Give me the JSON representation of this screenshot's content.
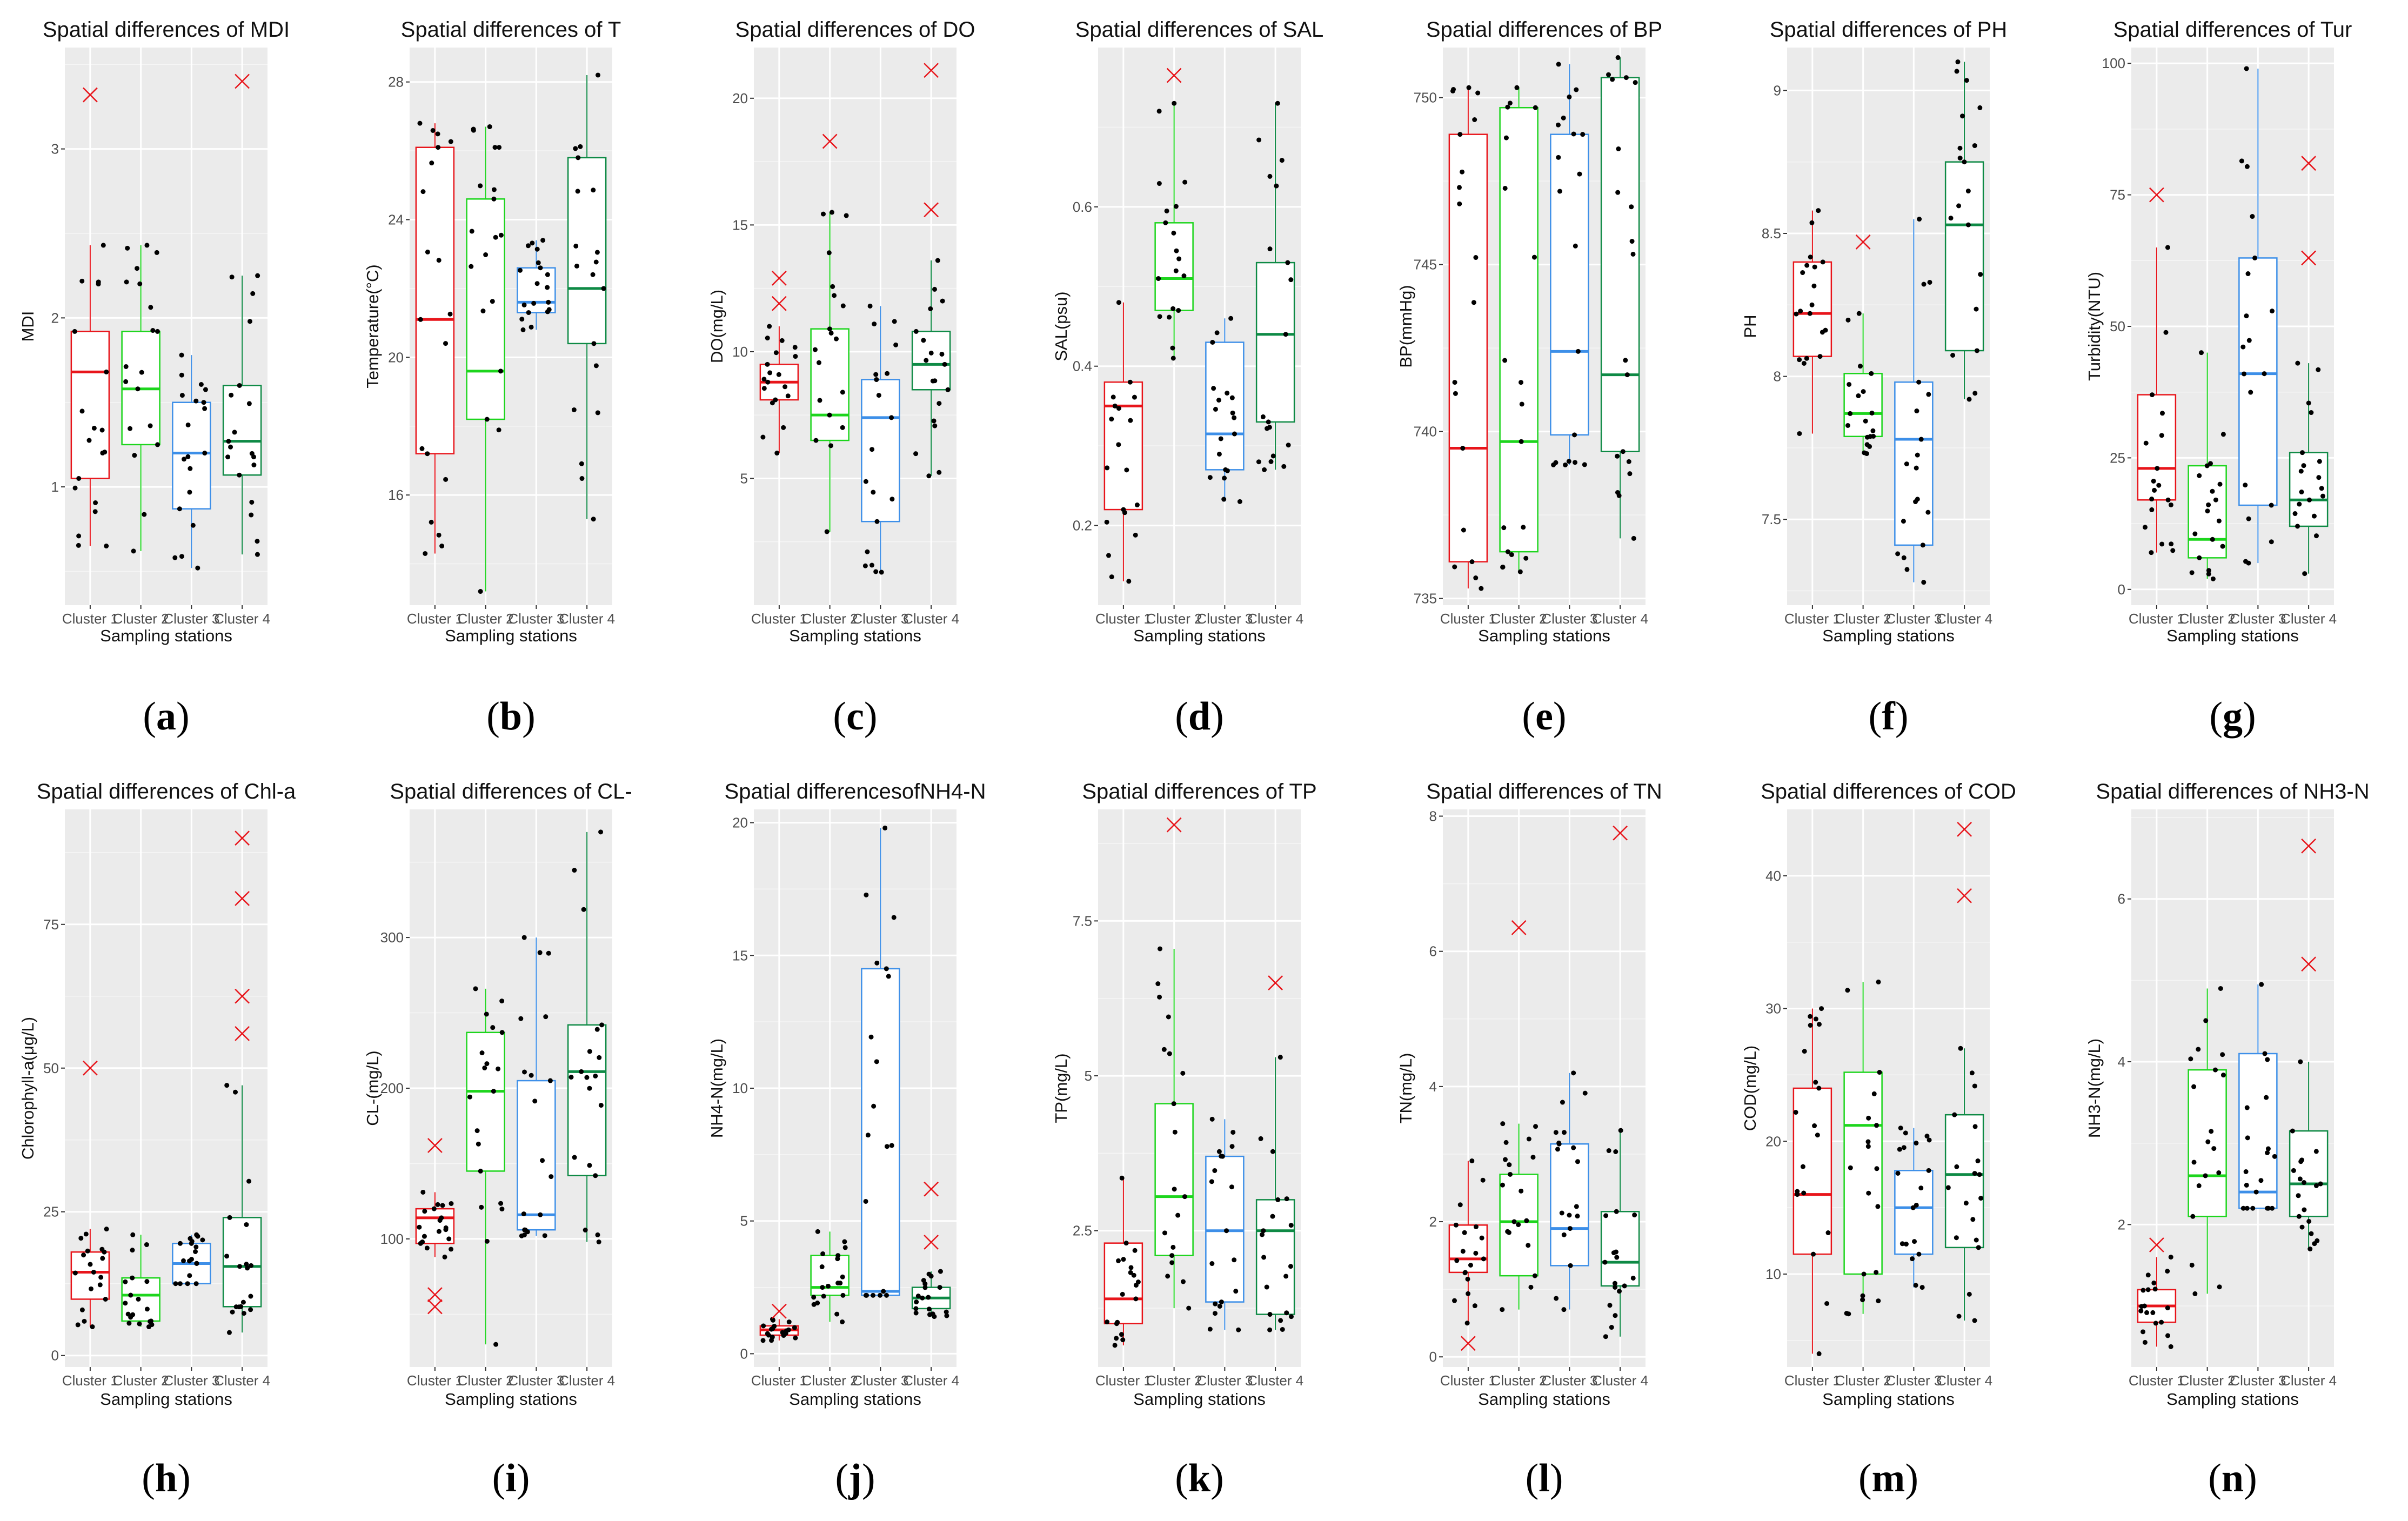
{
  "xlabel": "Sampling stations",
  "categories": [
    "Cluster 1",
    "Cluster 2",
    "Cluster 3",
    "Cluster 4"
  ],
  "colors": [
    "#e8151b",
    "#1dd51d",
    "#3d8fe8",
    "#0e8a45"
  ],
  "outlier_color": "#e8151b",
  "chart_data": [
    {
      "type": "box",
      "label": "a",
      "title": "Spatial differences of MDI",
      "ylabel": "MDI",
      "ylim": [
        0.3,
        3.6
      ],
      "yticks": [
        1,
        2,
        3
      ],
      "boxes": [
        {
          "q1": 1.05,
          "median": 1.68,
          "q3": 1.92,
          "wlo": 0.65,
          "whi": 2.43,
          "outliers": [
            3.32
          ]
        },
        {
          "q1": 1.25,
          "median": 1.58,
          "q3": 1.92,
          "wlo": 0.62,
          "whi": 2.43,
          "outliers": []
        },
        {
          "q1": 0.87,
          "median": 1.2,
          "q3": 1.5,
          "wlo": 0.52,
          "whi": 1.78,
          "outliers": []
        },
        {
          "q1": 1.07,
          "median": 1.27,
          "q3": 1.6,
          "wlo": 0.6,
          "whi": 2.25,
          "outliers": [
            3.4
          ]
        }
      ]
    },
    {
      "type": "box",
      "label": "b",
      "title": "Spatial differences of T",
      "ylabel": "Temperature(°C)",
      "ylim": [
        12.8,
        29
      ],
      "yticks": [
        16,
        20,
        24,
        28
      ],
      "boxes": [
        {
          "q1": 17.2,
          "median": 21.1,
          "q3": 26.1,
          "wlo": 14.3,
          "whi": 26.8,
          "outliers": []
        },
        {
          "q1": 18.2,
          "median": 19.6,
          "q3": 24.6,
          "wlo": 13.2,
          "whi": 26.7,
          "outliers": []
        },
        {
          "q1": 21.3,
          "median": 21.6,
          "q3": 22.6,
          "wlo": 20.8,
          "whi": 23.4,
          "outliers": []
        },
        {
          "q1": 20.4,
          "median": 22.0,
          "q3": 25.8,
          "wlo": 15.3,
          "whi": 28.2,
          "outliers": []
        }
      ]
    },
    {
      "type": "box",
      "label": "c",
      "title": "Spatial differences of DO",
      "ylabel": "DO(mg/L)",
      "ylim": [
        0,
        22
      ],
      "yticks": [
        5,
        10,
        15,
        20
      ],
      "boxes": [
        {
          "q1": 8.1,
          "median": 8.8,
          "q3": 9.5,
          "wlo": 6.0,
          "whi": 11.0,
          "outliers": [
            12.9,
            11.9
          ]
        },
        {
          "q1": 6.5,
          "median": 7.5,
          "q3": 10.9,
          "wlo": 2.9,
          "whi": 15.5,
          "outliers": [
            18.3
          ]
        },
        {
          "q1": 3.3,
          "median": 7.4,
          "q3": 8.9,
          "wlo": 1.3,
          "whi": 11.8,
          "outliers": []
        },
        {
          "q1": 8.5,
          "median": 9.5,
          "q3": 10.8,
          "wlo": 5.1,
          "whi": 13.6,
          "outliers": [
            21.1,
            15.6
          ]
        }
      ]
    },
    {
      "type": "box",
      "label": "d",
      "title": "Spatial differences of SAL",
      "ylabel": "SAL(psu)",
      "ylim": [
        0.1,
        0.8
      ],
      "yticks": [
        0.2,
        0.4,
        0.6
      ],
      "boxes": [
        {
          "q1": 0.22,
          "median": 0.35,
          "q3": 0.38,
          "wlo": 0.13,
          "whi": 0.48,
          "outliers": []
        },
        {
          "q1": 0.47,
          "median": 0.51,
          "q3": 0.58,
          "wlo": 0.41,
          "whi": 0.73,
          "outliers": [
            0.765
          ]
        },
        {
          "q1": 0.27,
          "median": 0.315,
          "q3": 0.43,
          "wlo": 0.23,
          "whi": 0.46,
          "outliers": []
        },
        {
          "q1": 0.33,
          "median": 0.44,
          "q3": 0.53,
          "wlo": 0.27,
          "whi": 0.73,
          "outliers": []
        }
      ]
    },
    {
      "type": "box",
      "label": "e",
      "title": "Spatial differences of BP",
      "ylabel": "BP(mmHg)",
      "ylim": [
        734.8,
        751.5
      ],
      "yticks": [
        735,
        740,
        745,
        750
      ],
      "boxes": [
        {
          "q1": 736.1,
          "median": 739.5,
          "q3": 748.9,
          "wlo": 735.3,
          "whi": 750.3,
          "outliers": []
        },
        {
          "q1": 736.4,
          "median": 739.7,
          "q3": 749.7,
          "wlo": 735.8,
          "whi": 750.3,
          "outliers": []
        },
        {
          "q1": 739.9,
          "median": 742.4,
          "q3": 748.9,
          "wlo": 739.0,
          "whi": 751.0,
          "outliers": []
        },
        {
          "q1": 739.4,
          "median": 741.7,
          "q3": 750.6,
          "wlo": 736.8,
          "whi": 751.2,
          "outliers": []
        }
      ]
    },
    {
      "type": "box",
      "label": "f",
      "title": "Spatial differences of PH",
      "ylabel": "PH",
      "ylim": [
        7.2,
        9.15
      ],
      "yticks": [
        7.5,
        8.0,
        8.5,
        9.0
      ],
      "boxes": [
        {
          "q1": 8.07,
          "median": 8.22,
          "q3": 8.4,
          "wlo": 7.8,
          "whi": 8.58,
          "outliers": []
        },
        {
          "q1": 7.79,
          "median": 7.87,
          "q3": 8.01,
          "wlo": 7.73,
          "whi": 8.22,
          "outliers": [
            8.47
          ]
        },
        {
          "q1": 7.41,
          "median": 7.78,
          "q3": 7.98,
          "wlo": 7.28,
          "whi": 8.55,
          "outliers": []
        },
        {
          "q1": 8.09,
          "median": 8.53,
          "q3": 8.75,
          "wlo": 7.92,
          "whi": 9.1,
          "outliers": []
        }
      ]
    },
    {
      "type": "box",
      "label": "g",
      "title": "Spatial differences of Tur",
      "ylabel": "Turbidity(NTU)",
      "ylim": [
        -3,
        103
      ],
      "yticks": [
        0,
        25,
        50,
        75,
        100
      ],
      "boxes": [
        {
          "q1": 17,
          "median": 23,
          "q3": 37,
          "wlo": 7,
          "whi": 65,
          "outliers": [
            75
          ]
        },
        {
          "q1": 6,
          "median": 9.5,
          "q3": 23.5,
          "wlo": 2,
          "whi": 45,
          "outliers": []
        },
        {
          "q1": 16,
          "median": 41,
          "q3": 63,
          "wlo": 5,
          "whi": 99,
          "outliers": []
        },
        {
          "q1": 12,
          "median": 17,
          "q3": 26,
          "wlo": 3,
          "whi": 43,
          "outliers": [
            81,
            63
          ]
        }
      ]
    },
    {
      "type": "box",
      "label": "h",
      "title": "Spatial differences of Chl-a",
      "ylabel": "Chlorophyll-a(μg/L)",
      "ylim": [
        -2,
        95
      ],
      "yticks": [
        0,
        25,
        50,
        75
      ],
      "boxes": [
        {
          "q1": 9.8,
          "median": 14.5,
          "q3": 18,
          "wlo": 5,
          "whi": 22,
          "outliers": [
            50
          ]
        },
        {
          "q1": 6,
          "median": 10.5,
          "q3": 13.5,
          "wlo": 5,
          "whi": 21,
          "outliers": []
        },
        {
          "q1": 12.5,
          "median": 16,
          "q3": 19.5,
          "wlo": 12.5,
          "whi": 21,
          "outliers": []
        },
        {
          "q1": 8.5,
          "median": 15.5,
          "q3": 24,
          "wlo": 4,
          "whi": 47,
          "outliers": [
            90,
            79.5,
            62.5,
            56
          ]
        }
      ]
    },
    {
      "type": "box",
      "label": "i",
      "title": "Spatial differences of CL-",
      "ylabel": "CL-(mg/L)",
      "ylim": [
        15,
        385
      ],
      "yticks": [
        100,
        200,
        300
      ],
      "boxes": [
        {
          "q1": 97,
          "median": 114,
          "q3": 120,
          "wlo": 88,
          "whi": 131,
          "outliers": [
            162,
            63,
            55
          ]
        },
        {
          "q1": 145,
          "median": 198,
          "q3": 237,
          "wlo": 30,
          "whi": 266,
          "outliers": []
        },
        {
          "q1": 106,
          "median": 116,
          "q3": 205,
          "wlo": 102,
          "whi": 300,
          "outliers": []
        },
        {
          "q1": 142,
          "median": 211,
          "q3": 242,
          "wlo": 98,
          "whi": 370,
          "outliers": []
        }
      ]
    },
    {
      "type": "box",
      "label": "j",
      "title": "Spatial differencesofNH4-N",
      "ylabel": "NH4-N(mg/L)",
      "ylim": [
        -0.5,
        20.5
      ],
      "yticks": [
        0,
        5,
        10,
        15,
        20
      ],
      "boxes": [
        {
          "q1": 0.7,
          "median": 0.9,
          "q3": 1.05,
          "wlo": 0.5,
          "whi": 1.3,
          "outliers": [
            1.6
          ]
        },
        {
          "q1": 2.2,
          "median": 2.5,
          "q3": 3.7,
          "wlo": 1.2,
          "whi": 4.6,
          "outliers": []
        },
        {
          "q1": 2.2,
          "median": 2.35,
          "q3": 14.5,
          "wlo": 2.2,
          "whi": 19.8,
          "outliers": []
        },
        {
          "q1": 1.7,
          "median": 2.1,
          "q3": 2.5,
          "wlo": 1.4,
          "whi": 3.1,
          "outliers": [
            6.2,
            4.2
          ]
        }
      ]
    },
    {
      "type": "box",
      "label": "k",
      "title": "Spatial differences of TP",
      "ylabel": "TP(mg/L)",
      "ylim": [
        0.3,
        9.3
      ],
      "yticks": [
        2.5,
        5.0,
        7.5
      ],
      "boxes": [
        {
          "q1": 1.0,
          "median": 1.4,
          "q3": 2.3,
          "wlo": 0.65,
          "whi": 3.35,
          "outliers": []
        },
        {
          "q1": 2.1,
          "median": 3.05,
          "q3": 4.55,
          "wlo": 1.25,
          "whi": 7.05,
          "outliers": [
            9.05
          ]
        },
        {
          "q1": 1.35,
          "median": 2.5,
          "q3": 3.7,
          "wlo": 0.9,
          "whi": 4.3,
          "outliers": []
        },
        {
          "q1": 1.15,
          "median": 2.5,
          "q3": 3.0,
          "wlo": 0.9,
          "whi": 5.3,
          "outliers": [
            6.5
          ]
        }
      ]
    },
    {
      "type": "box",
      "label": "l",
      "title": "Spatial differences of TN",
      "ylabel": "TN(mg/L)",
      "ylim": [
        -0.15,
        8.1
      ],
      "yticks": [
        0,
        2,
        4,
        6,
        8
      ],
      "boxes": [
        {
          "q1": 1.25,
          "median": 1.45,
          "q3": 1.95,
          "wlo": 0.5,
          "whi": 2.9,
          "outliers": [
            0.2
          ]
        },
        {
          "q1": 1.2,
          "median": 2.0,
          "q3": 2.7,
          "wlo": 0.7,
          "whi": 3.45,
          "outliers": [
            6.35
          ]
        },
        {
          "q1": 1.35,
          "median": 1.9,
          "q3": 3.15,
          "wlo": 0.7,
          "whi": 4.2,
          "outliers": []
        },
        {
          "q1": 1.05,
          "median": 1.4,
          "q3": 2.15,
          "wlo": 0.3,
          "whi": 3.35,
          "outliers": [
            7.75
          ]
        }
      ]
    },
    {
      "type": "box",
      "label": "m",
      "title": "Spatial differences of COD",
      "ylabel": "COD(mg/L)",
      "ylim": [
        3,
        45
      ],
      "yticks": [
        10,
        20,
        30,
        40
      ],
      "boxes": [
        {
          "q1": 11.5,
          "median": 16,
          "q3": 24,
          "wlo": 4,
          "whi": 30,
          "outliers": []
        },
        {
          "q1": 10,
          "median": 21.2,
          "q3": 25.2,
          "wlo": 7,
          "whi": 32,
          "outliers": []
        },
        {
          "q1": 11.5,
          "median": 15,
          "q3": 17.8,
          "wlo": 9,
          "whi": 21,
          "outliers": []
        },
        {
          "q1": 12,
          "median": 17.5,
          "q3": 22,
          "wlo": 6.5,
          "whi": 27,
          "outliers": [
            43.5,
            38.5
          ]
        }
      ]
    },
    {
      "type": "box",
      "label": "n",
      "title": "Spatial differences of NH3-N",
      "ylabel": "NH3-N(mg/L)",
      "ylim": [
        0.25,
        7.1
      ],
      "yticks": [
        2,
        4,
        6
      ],
      "boxes": [
        {
          "q1": 0.8,
          "median": 1.0,
          "q3": 1.2,
          "wlo": 0.5,
          "whi": 1.6,
          "outliers": [
            1.75
          ]
        },
        {
          "q1": 2.1,
          "median": 2.6,
          "q3": 3.9,
          "wlo": 1.15,
          "whi": 4.9,
          "outliers": []
        },
        {
          "q1": 2.2,
          "median": 2.4,
          "q3": 4.1,
          "wlo": 2.2,
          "whi": 4.95,
          "outliers": []
        },
        {
          "q1": 2.1,
          "median": 2.5,
          "q3": 3.15,
          "wlo": 1.7,
          "whi": 4.0,
          "outliers": [
            6.65,
            5.2
          ]
        }
      ]
    }
  ]
}
